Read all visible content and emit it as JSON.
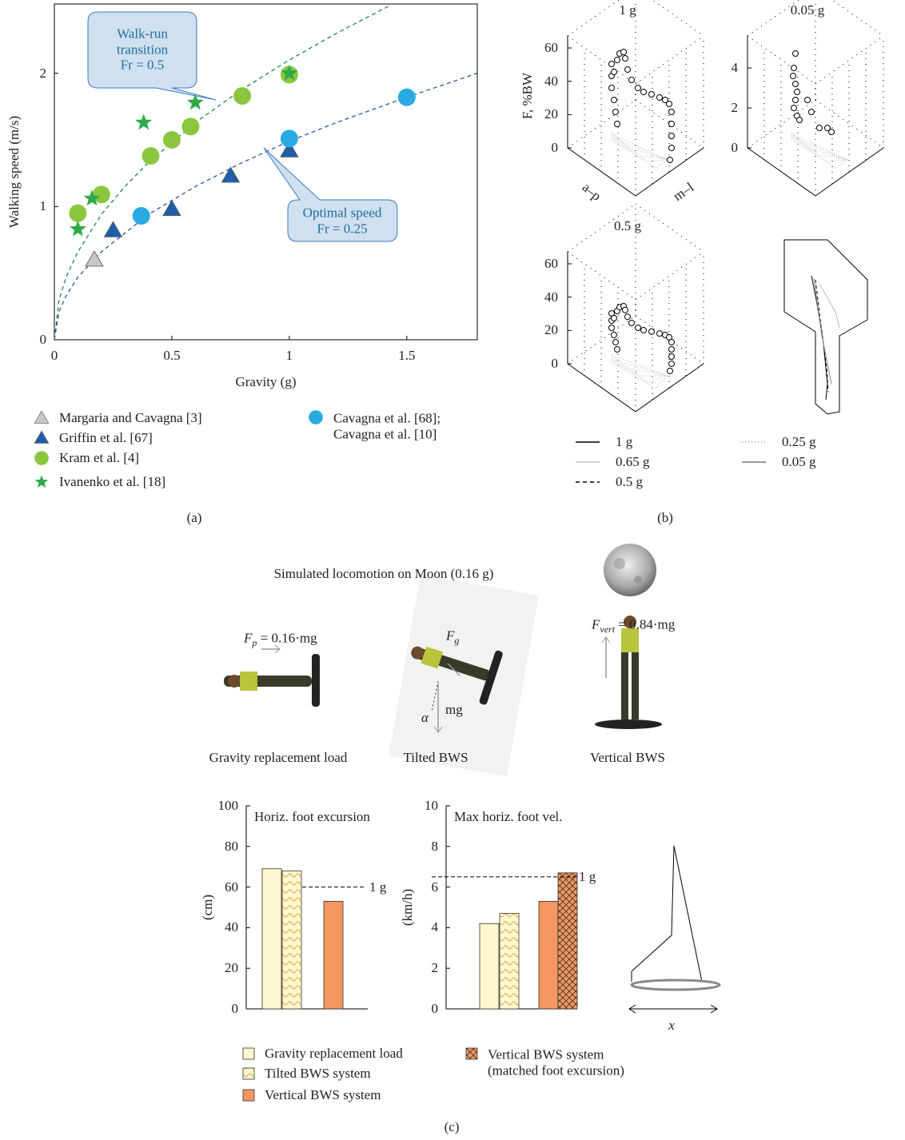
{
  "panels": [
    "(a)",
    "(b)",
    "(c)"
  ],
  "chart_data": [
    {
      "type": "scatter",
      "xlabel": "Gravity (g)",
      "ylabel": "Walking speed (m/s)",
      "xlim": [
        0,
        1.8
      ],
      "ylim": [
        0,
        2.52
      ],
      "xticks": [
        0,
        0.5,
        1,
        1.5
      ],
      "yticks": [
        0,
        1,
        2
      ],
      "series": [
        {
          "name": "Margaria and Cavagna [3]",
          "color": "#c8c8c8",
          "marker": "triangle",
          "x": [
            0.17
          ],
          "values": [
            0.6
          ]
        },
        {
          "name": "Griffin et al. [67]",
          "color": "#1f5fa8",
          "marker": "triangle",
          "x": [
            0.25,
            0.5,
            0.75,
            1.0
          ],
          "values": [
            0.82,
            0.98,
            1.23,
            1.42
          ]
        },
        {
          "name": "Kram et al. [4]",
          "color": "#8cc63f",
          "marker": "circle",
          "x": [
            0.1,
            0.2,
            0.41,
            0.5,
            0.58,
            0.8,
            1.0
          ],
          "values": [
            0.95,
            1.09,
            1.38,
            1.5,
            1.6,
            1.83,
            1.99
          ]
        },
        {
          "name": "Ivanenko et al. [18]",
          "color": "#2eaa4a",
          "marker": "star",
          "x": [
            0.1,
            0.16,
            0.38,
            0.6,
            1.0
          ],
          "values": [
            0.83,
            1.06,
            1.63,
            1.78,
            2.0
          ]
        },
        {
          "name": "Cavagna et al. [68];\nCavagna et al. [10]",
          "color": "#29abe2",
          "marker": "circle",
          "x": [
            0.37,
            1.0,
            1.5
          ],
          "values": [
            0.93,
            1.51,
            1.82
          ]
        },
        {
          "color": "#1e8a4a",
          "style": "dashed",
          "x": [
            0,
            0.02,
            0.05,
            0.1,
            0.2,
            0.3,
            0.4,
            0.6,
            0.8,
            1.0,
            1.2,
            1.43
          ],
          "values": [
            0,
            0.3,
            0.47,
            0.66,
            0.94,
            1.15,
            1.33,
            1.63,
            1.88,
            2.1,
            2.3,
            2.51
          ]
        },
        {
          "color": "#2a55a8",
          "style": "dashed",
          "x": [
            0,
            0.02,
            0.05,
            0.1,
            0.2,
            0.4,
            0.6,
            0.8,
            1.0,
            1.2,
            1.5,
            1.8
          ],
          "values": [
            0,
            0.21,
            0.33,
            0.47,
            0.66,
            0.94,
            1.15,
            1.33,
            1.49,
            1.63,
            1.82,
            2.0
          ]
        }
      ],
      "annotations": [
        "Walk-run\ntransition\nFr = 0.5",
        "Optimal speed\nFr = 0.25"
      ]
    },
    {
      "type": "force-3d",
      "title": "1 g",
      "zlabel": "F, %BW",
      "xlabel": "a–p",
      "ylabel": "m–l",
      "zlim": [
        0,
        60
      ],
      "zticks": [
        0,
        20,
        40,
        60
      ]
    },
    {
      "type": "force-3d",
      "title": "0.05 g",
      "zlim": [
        0,
        5
      ],
      "zticks": [
        0,
        2,
        4
      ]
    },
    {
      "type": "force-3d",
      "title": "0.5 g",
      "zlim": [
        0,
        60
      ],
      "zticks": [
        0,
        20,
        40,
        60
      ]
    },
    {
      "type": "trajectory",
      "series": [
        {
          "name": "1 g",
          "color": "#000000",
          "style": "solid"
        },
        {
          "name": "0.65 g",
          "color": "#bbbbbb",
          "style": "solid"
        },
        {
          "name": "0.5 g",
          "color": "#000000",
          "style": "dashed"
        },
        {
          "name": "0.25 g",
          "color": "#999999",
          "style": "dotted"
        },
        {
          "name": "0.05 g",
          "color": "#777777",
          "style": "solid"
        }
      ]
    },
    {
      "type": "bar",
      "title": "Horiz. foot excursion",
      "ylabel": "(cm)",
      "ylim": [
        0,
        100
      ],
      "yticks": [
        0,
        20,
        40,
        60,
        80,
        100
      ],
      "reference": {
        "value": 60,
        "label": "1 g"
      },
      "series": [
        {
          "color": "#fdf8cf",
          "pattern": "plain",
          "values": [
            69
          ]
        },
        {
          "color": "#fdf8cf",
          "pattern": "wavy",
          "values": [
            68
          ]
        },
        {
          "color": "#f4965f",
          "pattern": "plain",
          "values": [
            53
          ]
        }
      ]
    },
    {
      "type": "bar",
      "title": "Max horiz. foot vel.",
      "ylabel": "(km/h)",
      "ylim": [
        0,
        10
      ],
      "yticks": [
        0,
        2,
        4,
        6,
        8,
        10
      ],
      "reference": {
        "value": 6.5,
        "label": "1 g"
      },
      "series": [
        {
          "name": "Gravity replacement load",
          "color": "#fdf8cf",
          "pattern": "plain",
          "values": [
            4.2
          ]
        },
        {
          "name": "Tilted BWS system",
          "color": "#fdf8cf",
          "pattern": "wavy",
          "values": [
            4.7
          ]
        },
        {
          "name": "Vertical BWS system",
          "color": "#f4965f",
          "pattern": "plain",
          "values": [
            5.3
          ]
        },
        {
          "name": "Vertical BWS system\n(matched foot excursion)",
          "color": "#f4965f",
          "pattern": "cross",
          "values": [
            6.7
          ]
        }
      ]
    }
  ],
  "illustration": {
    "title": "Simulated locomotion on Moon (0.16 g)",
    "forces": [
      {
        "symbol": "F",
        "subscript": "p",
        "text": " = 0.16·mg"
      },
      {
        "symbol": "F",
        "subscript": "g"
      },
      {
        "symbol": "α"
      },
      {
        "text": "mg"
      },
      {
        "symbol": "F",
        "subscript": "vert",
        "text": " = 0.84·mg"
      }
    ],
    "setups": [
      "Gravity replacement load",
      "Tilted BWS",
      "Vertical BWS"
    ],
    "axis": "x"
  }
}
